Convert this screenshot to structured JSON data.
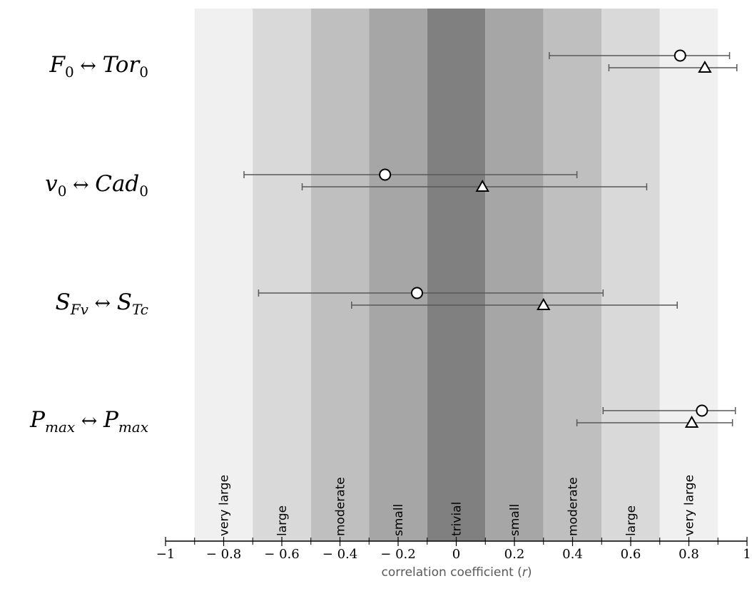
{
  "chart_data": {
    "type": "scatter",
    "xlabel": "correlation coefficient",
    "xlabel_var": "r",
    "xlim": [
      -1,
      1
    ],
    "x_ticks": [
      -1,
      -0.8,
      -0.6,
      -0.4,
      -0.2,
      0,
      0.2,
      0.4,
      0.6,
      0.8,
      1
    ],
    "x_tick_labels": [
      "−1",
      "− 0.8",
      "− 0.6",
      "− 0.4",
      "− 0.2",
      "0",
      "0.2",
      "0.4",
      "0.6",
      "0.8",
      "1"
    ],
    "grid": false,
    "legend": "none",
    "bands": [
      {
        "label": "",
        "from": -1.0,
        "to": -0.9,
        "color": "#ffffff"
      },
      {
        "label": "very large",
        "from": -0.9,
        "to": -0.7,
        "color": "#f0f0f0"
      },
      {
        "label": "large",
        "from": -0.7,
        "to": -0.5,
        "color": "#d9d9d9"
      },
      {
        "label": "moderate",
        "from": -0.5,
        "to": -0.3,
        "color": "#bfbfbf"
      },
      {
        "label": "small",
        "from": -0.3,
        "to": -0.1,
        "color": "#a6a6a6"
      },
      {
        "label": "trivial",
        "from": -0.1,
        "to": 0.1,
        "color": "#808080"
      },
      {
        "label": "small",
        "from": 0.1,
        "to": 0.3,
        "color": "#a6a6a6"
      },
      {
        "label": "moderate",
        "from": 0.3,
        "to": 0.5,
        "color": "#bfbfbf"
      },
      {
        "label": "large",
        "from": 0.5,
        "to": 0.7,
        "color": "#d9d9d9"
      },
      {
        "label": "very large",
        "from": 0.7,
        "to": 0.9,
        "color": "#f0f0f0"
      },
      {
        "label": "",
        "from": 0.9,
        "to": 1.0,
        "color": "#ffffff"
      }
    ],
    "categories": [
      {
        "left": {
          "base": "F",
          "sub": "0"
        },
        "right": {
          "base": "Tor",
          "sub": "0"
        },
        "points": [
          {
            "marker": "circle",
            "r": 0.77,
            "lo": 0.32,
            "hi": 0.94
          },
          {
            "marker": "triangle",
            "r": 0.855,
            "lo": 0.525,
            "hi": 0.965
          }
        ]
      },
      {
        "left": {
          "base": "v",
          "sub": "0"
        },
        "right": {
          "base": "Cad",
          "sub": "0"
        },
        "points": [
          {
            "marker": "circle",
            "r": -0.245,
            "lo": -0.73,
            "hi": 0.415
          },
          {
            "marker": "triangle",
            "r": 0.09,
            "lo": -0.53,
            "hi": 0.655
          }
        ]
      },
      {
        "left": {
          "base": "S",
          "sub": "Fv"
        },
        "right": {
          "base": "S",
          "sub": "Tc"
        },
        "points": [
          {
            "marker": "circle",
            "r": -0.135,
            "lo": -0.68,
            "hi": 0.505
          },
          {
            "marker": "triangle",
            "r": 0.3,
            "lo": -0.36,
            "hi": 0.76
          }
        ]
      },
      {
        "left": {
          "base": "P",
          "sub": "max"
        },
        "right": {
          "base": "P",
          "sub": "max"
        },
        "points": [
          {
            "marker": "circle",
            "r": 0.845,
            "lo": 0.505,
            "hi": 0.96
          },
          {
            "marker": "triangle",
            "r": 0.81,
            "lo": 0.415,
            "hi": 0.95
          }
        ]
      }
    ],
    "arrow": "↔"
  }
}
